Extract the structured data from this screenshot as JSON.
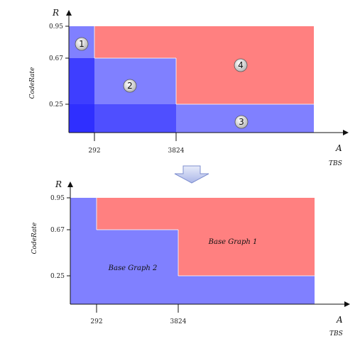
{
  "top_chart": {
    "y_axis_letter": "R",
    "y_axis_label": "CodeRate",
    "x_axis_letter": "A",
    "x_axis_label": "TBS",
    "y_ticks": [
      "0.95",
      "0.67",
      "0.25"
    ],
    "x_ticks": [
      "292",
      "3824"
    ],
    "region_labels": [
      "1",
      "2",
      "3",
      "4"
    ]
  },
  "transition_arrow": "down-arrow",
  "bottom_chart": {
    "y_axis_letter": "R",
    "y_axis_label": "CodeRate",
    "x_axis_letter": "A",
    "x_axis_label": "TBS",
    "y_ticks": [
      "0.95",
      "0.67",
      "0.25"
    ],
    "x_ticks": [
      "292",
      "3824"
    ],
    "base_graph_1": "Base Graph 1",
    "base_graph_2": "Base Graph 2"
  },
  "colors": {
    "red_region": "#ff8080",
    "blue_region": "#8080ff",
    "deep_blue": "#2a2aff"
  }
}
